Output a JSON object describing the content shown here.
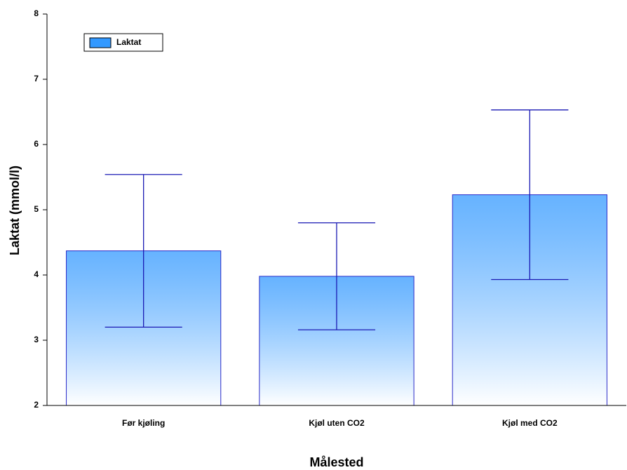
{
  "chart_data": {
    "type": "bar",
    "x_label": "Målested",
    "y_label": "Laktat (mmol/l)",
    "categories": [
      "Før kjøling",
      "Kjøl uten CO2",
      "Kjøl med CO2"
    ],
    "series": [
      {
        "name": "Laktat",
        "color": "#3399ff",
        "values": [
          4.37,
          3.98,
          5.23
        ],
        "errors": [
          1.17,
          0.82,
          1.3
        ]
      }
    ],
    "error_color": "#1a1ab4",
    "ylim": [
      2,
      8
    ],
    "yticks": [
      2,
      3,
      4,
      5,
      6,
      7,
      8
    ],
    "grid": false,
    "legend": "top-left"
  }
}
